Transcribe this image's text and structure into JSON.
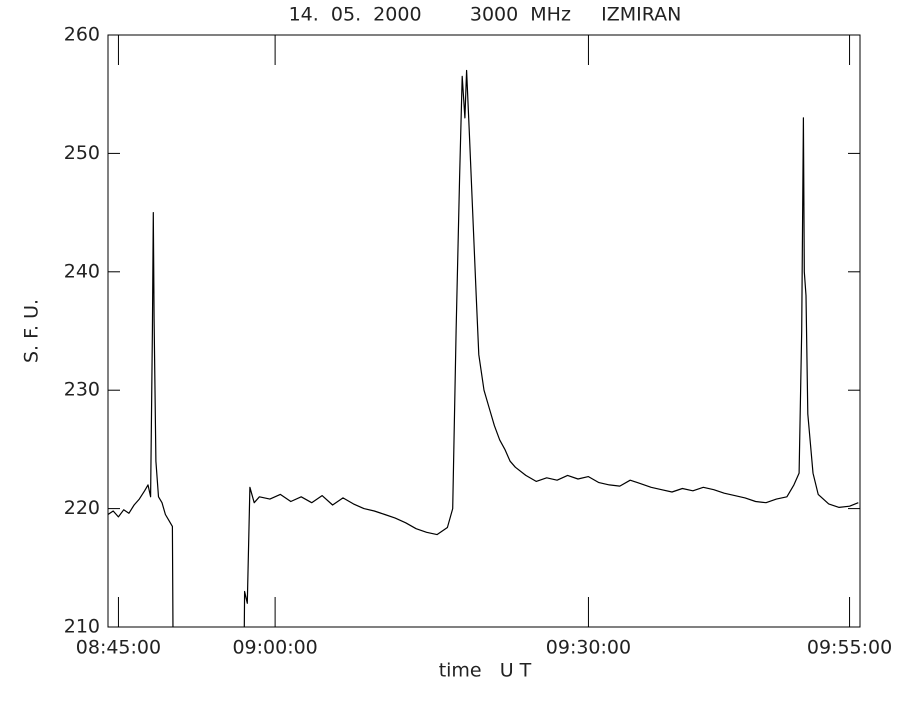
{
  "chart_data": {
    "type": "line",
    "title": "14.  05.  2000        3000  MHz     IZMIRAN",
    "xlabel": "time   U T",
    "ylabel": "S. F. U.",
    "xlim": [
      "08:44:00",
      "09:56:00"
    ],
    "xticks": [
      "08:45:00",
      "09:00:00",
      "09:30:00",
      "09:55:00"
    ],
    "ylim": [
      210,
      260
    ],
    "yticks": [
      210,
      220,
      230,
      240,
      250,
      260
    ],
    "grid": false,
    "series": [
      {
        "color": "#000000",
        "x": [
          "08:44:00",
          "08:44:30",
          "08:45:00",
          "08:45:30",
          "08:46:00",
          "08:46:30",
          "08:47:00",
          "08:47:30",
          "08:47:50",
          "08:48:05",
          "08:48:15",
          "08:48:20",
          "08:48:25",
          "08:48:35",
          "08:48:50",
          "08:49:10",
          "08:49:30",
          "08:49:50",
          "08:50:10",
          "08:50:15",
          "08:53:00",
          "08:57:00",
          "08:57:05",
          "08:57:20",
          "08:57:35",
          "08:58:00",
          "08:58:30",
          "08:59:30",
          "09:00:30",
          "09:01:30",
          "09:02:30",
          "09:03:30",
          "09:04:30",
          "09:05:30",
          "09:06:30",
          "09:07:30",
          "09:08:30",
          "09:09:30",
          "09:10:30",
          "09:11:30",
          "09:12:30",
          "09:13:30",
          "09:14:30",
          "09:15:30",
          "09:16:30",
          "09:17:00",
          "09:17:20",
          "09:17:40",
          "09:17:55",
          "09:18:10",
          "09:18:20",
          "09:18:35",
          "09:18:55",
          "09:19:15",
          "09:19:30",
          "09:20:00",
          "09:20:30",
          "09:21:00",
          "09:21:30",
          "09:22:00",
          "09:22:30",
          "09:23:00",
          "09:24:00",
          "09:25:00",
          "09:26:00",
          "09:27:00",
          "09:28:00",
          "09:29:00",
          "09:30:00",
          "09:31:00",
          "09:32:00",
          "09:33:00",
          "09:34:00",
          "09:35:00",
          "09:36:00",
          "09:37:00",
          "09:38:00",
          "09:39:00",
          "09:40:00",
          "09:41:00",
          "09:42:00",
          "09:43:00",
          "09:44:00",
          "09:45:00",
          "09:46:00",
          "09:47:00",
          "09:48:00",
          "09:49:00",
          "09:49:40",
          "09:50:10",
          "09:50:25",
          "09:50:35",
          "09:50:40",
          "09:50:50",
          "09:51:00",
          "09:51:15",
          "09:51:30",
          "09:52:00",
          "09:53:00",
          "09:54:00",
          "09:55:00",
          "09:55:50"
        ],
        "values": [
          219.5,
          219.8,
          219.3,
          219.9,
          219.6,
          220.3,
          220.8,
          221.5,
          222,
          221,
          235,
          245,
          236,
          224,
          221,
          220.5,
          219.5,
          219,
          218.5,
          205,
          null,
          205,
          213,
          212,
          221.8,
          220.5,
          221,
          220.8,
          221.2,
          220.6,
          221,
          220.5,
          221.1,
          220.3,
          220.9,
          220.4,
          220,
          219.8,
          219.5,
          219.2,
          218.8,
          218.3,
          218,
          217.8,
          218.4,
          220,
          235,
          248,
          256.5,
          253,
          257,
          252,
          245,
          238,
          233,
          230,
          228.5,
          227,
          225.8,
          225,
          224,
          223.5,
          222.8,
          222.3,
          222.6,
          222.4,
          222.8,
          222.5,
          222.7,
          222.2,
          222,
          221.9,
          222.4,
          222.1,
          221.8,
          221.6,
          221.4,
          221.7,
          221.5,
          221.8,
          221.6,
          221.3,
          221.1,
          220.9,
          220.6,
          220.5,
          220.8,
          221,
          222,
          223,
          235,
          253,
          240,
          238,
          228,
          225.5,
          223,
          221.2,
          220.4,
          220.1,
          220.2,
          220.5
        ]
      }
    ]
  }
}
